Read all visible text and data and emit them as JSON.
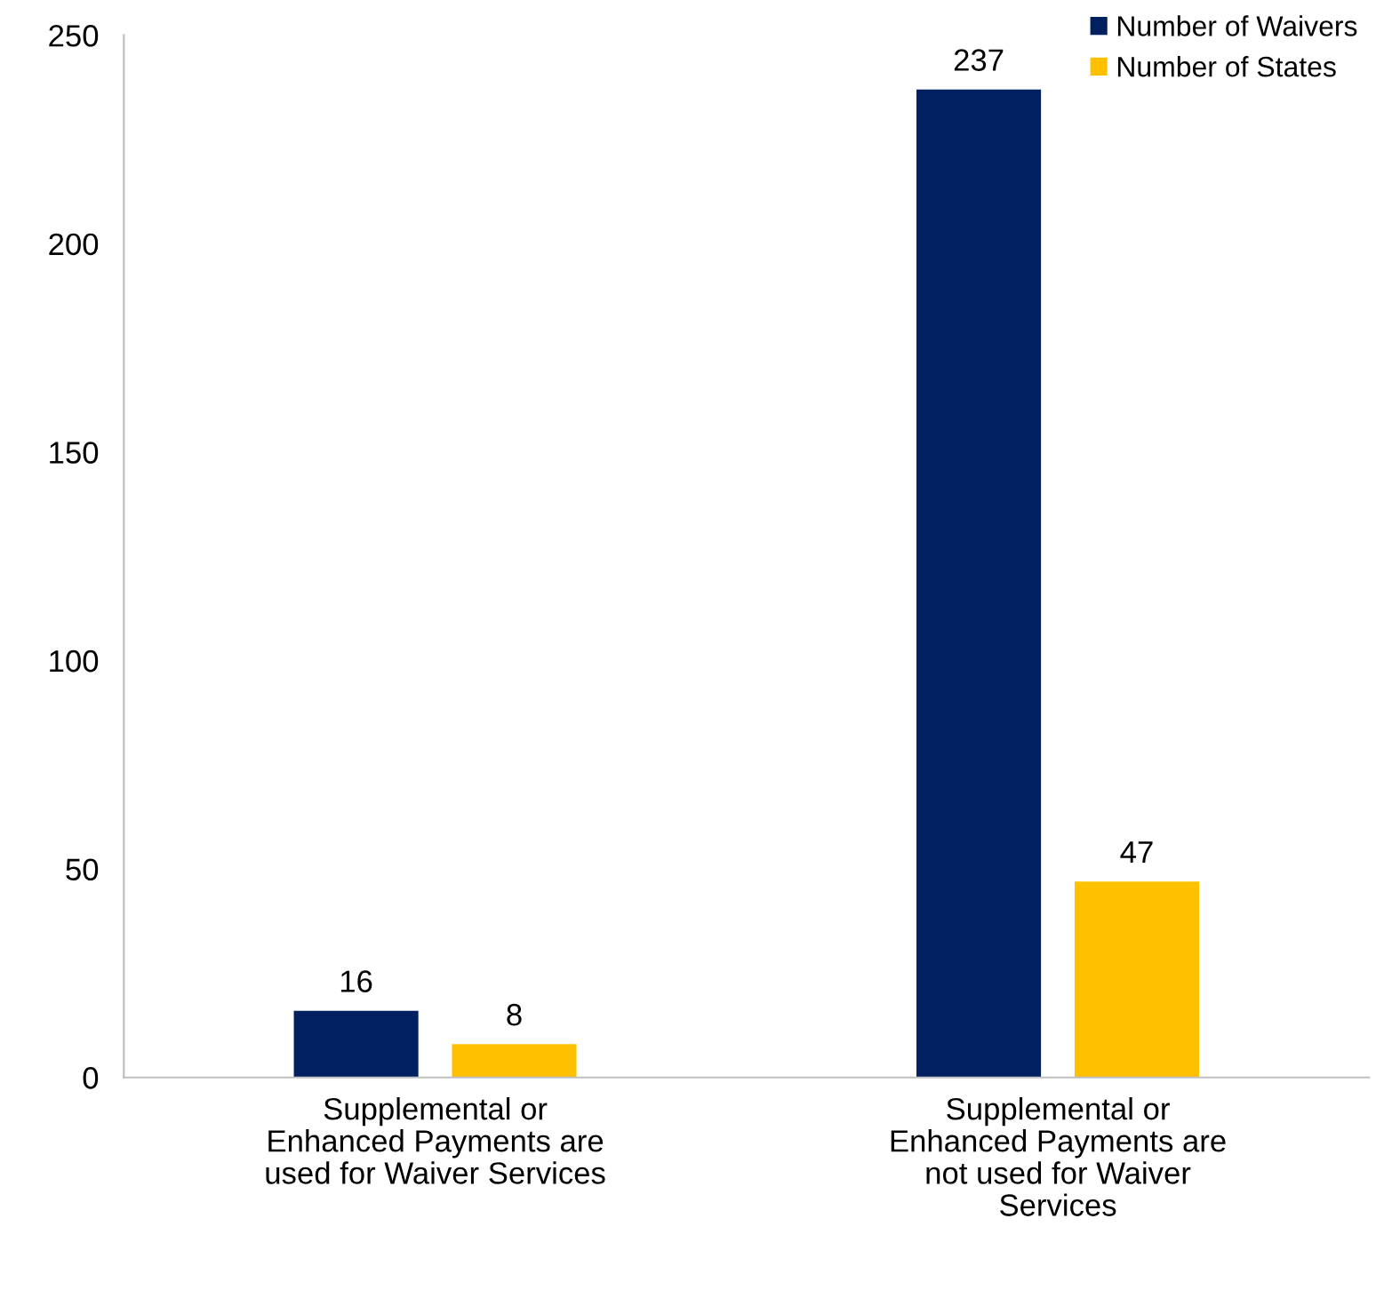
{
  "chart_data": {
    "type": "bar",
    "categories": [
      "Supplemental or\nEnhanced Payments are\nused for Waiver Services",
      "Supplemental or\nEnhanced Payments are\nnot used for Waiver\nServices"
    ],
    "series": [
      {
        "name": "Number of Waivers",
        "color": "#002060",
        "values": [
          16,
          237
        ]
      },
      {
        "name": "Number of States",
        "color": "#ffc000",
        "values": [
          8,
          47
        ]
      }
    ],
    "ylim": [
      0,
      250
    ],
    "yticks": [
      0,
      50,
      100,
      150,
      200,
      250
    ],
    "data_labels": true,
    "grid": false,
    "legend": "top right"
  }
}
